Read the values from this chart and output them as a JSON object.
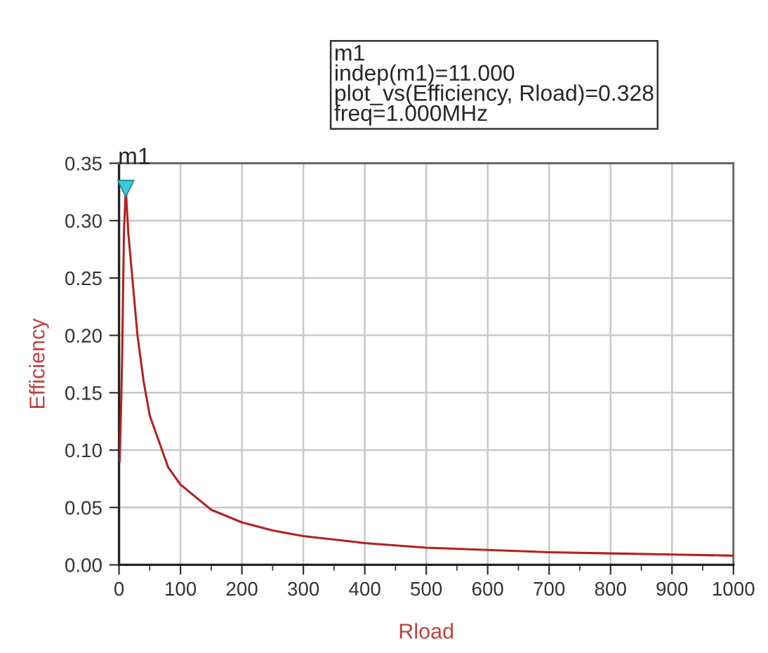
{
  "chart_data": {
    "type": "line",
    "xlabel": "Rload",
    "ylabel": "Efficiency",
    "xlim": [
      0,
      1000
    ],
    "xticks": [
      0,
      100,
      200,
      300,
      400,
      500,
      600,
      700,
      800,
      900,
      1000
    ],
    "ylim": [
      0,
      0.35
    ],
    "yticks": [
      {
        "value": 0,
        "label": "0.00"
      },
      {
        "value": 0.05,
        "label": "0.05"
      },
      {
        "value": 0.1,
        "label": "0.10"
      },
      {
        "value": 0.15,
        "label": "0.15"
      },
      {
        "value": 0.2,
        "label": "0.20"
      },
      {
        "value": 0.25,
        "label": "0.25"
      },
      {
        "value": 0.3,
        "label": "0.30"
      },
      {
        "value": 0.35,
        "label": "0.35"
      }
    ],
    "grid": true,
    "legend": false,
    "series": [
      {
        "color": "#b22222",
        "marker": "none",
        "line_style": "solid",
        "x": [
          1,
          3,
          5,
          8,
          11,
          15,
          20,
          30,
          40,
          50,
          60,
          70,
          80,
          100,
          150,
          200,
          250,
          300,
          400,
          500,
          600,
          700,
          800,
          900,
          1000
        ],
        "values": [
          0.09,
          0.13,
          0.18,
          0.29,
          0.328,
          0.29,
          0.26,
          0.2,
          0.16,
          0.13,
          0.115,
          0.1,
          0.085,
          0.07,
          0.048,
          0.037,
          0.03,
          0.025,
          0.019,
          0.015,
          0.013,
          0.011,
          0.01,
          0.009,
          0.008
        ]
      },
      {
        "type": "scatter",
        "color": "#40c8d8",
        "marker": "triangle",
        "x": [
          11
        ],
        "values": [
          0.328
        ]
      }
    ],
    "annotations": [
      {
        "text": "m1",
        "x": 11,
        "y": 0.328
      },
      "m1\nindep(m1)=11.000\nplot_vs(Efficiency, Rload)=0.328\nfreq=1.000MHz"
    ]
  }
}
